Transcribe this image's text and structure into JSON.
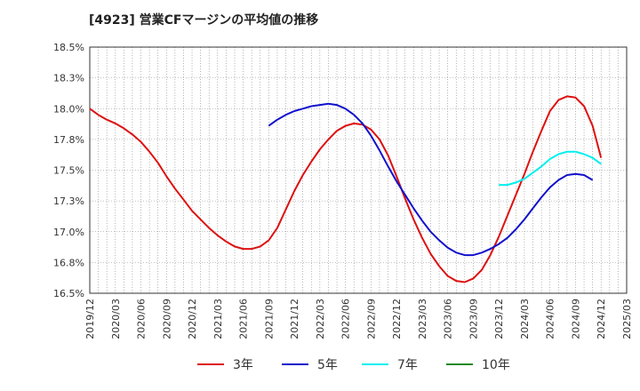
{
  "chart_data": {
    "type": "line",
    "title": "[4923]  営業CFマージンの平均値の推移",
    "xlabel": "",
    "ylabel": "",
    "grid": true,
    "legend_placement": "bottom",
    "x_ticks": [
      "2019/12",
      "2020/03",
      "2020/06",
      "2020/09",
      "2020/12",
      "2021/03",
      "2021/06",
      "2021/09",
      "2021/12",
      "2022/03",
      "2022/06",
      "2022/09",
      "2022/12",
      "2023/03",
      "2023/06",
      "2023/09",
      "2023/12",
      "2024/03",
      "2024/06",
      "2024/09",
      "2024/12",
      "2025/03"
    ],
    "y_ticks": [
      "16.5%",
      "16.8%",
      "17.0%",
      "17.3%",
      "17.5%",
      "17.8%",
      "18.0%",
      "18.3%",
      "18.5%"
    ],
    "ylim": [
      16.5,
      18.5
    ],
    "series": [
      {
        "name": "3年",
        "color": "#dd1111",
        "points": [
          [
            "2019/12",
            18.0
          ],
          [
            "2020/01",
            17.95
          ],
          [
            "2020/02",
            17.91
          ],
          [
            "2020/03",
            17.88
          ],
          [
            "2020/04",
            17.84
          ],
          [
            "2020/05",
            17.79
          ],
          [
            "2020/06",
            17.73
          ],
          [
            "2020/07",
            17.65
          ],
          [
            "2020/08",
            17.56
          ],
          [
            "2020/09",
            17.45
          ],
          [
            "2020/10",
            17.35
          ],
          [
            "2020/11",
            17.26
          ],
          [
            "2020/12",
            17.17
          ],
          [
            "2020/01b",
            17.17
          ],
          [
            "2021/01",
            17.1
          ],
          [
            "2021/02",
            17.03
          ],
          [
            "2021/03",
            16.97
          ],
          [
            "2021/04",
            16.92
          ],
          [
            "2021/05",
            16.88
          ],
          [
            "2021/06",
            16.86
          ],
          [
            "2021/07",
            16.86
          ],
          [
            "2021/08",
            16.88
          ],
          [
            "2021/09",
            16.93
          ],
          [
            "2021/10",
            17.03
          ],
          [
            "2021/11",
            17.18
          ],
          [
            "2021/12",
            17.33
          ],
          [
            "2022/01",
            17.46
          ],
          [
            "2022/02",
            17.57
          ],
          [
            "2022/03",
            17.67
          ],
          [
            "2022/04",
            17.75
          ],
          [
            "2022/05",
            17.82
          ],
          [
            "2022/06",
            17.86
          ],
          [
            "2022/07",
            17.88
          ],
          [
            "2022/08",
            17.87
          ],
          [
            "2022/09",
            17.83
          ],
          [
            "2022/10",
            17.75
          ],
          [
            "2022/11",
            17.62
          ],
          [
            "2022/12",
            17.45
          ],
          [
            "2023/01",
            17.27
          ],
          [
            "2023/02",
            17.1
          ],
          [
            "2023/03",
            16.95
          ],
          [
            "2023/04",
            16.82
          ],
          [
            "2023/05",
            16.72
          ],
          [
            "2023/06",
            16.64
          ],
          [
            "2023/07",
            16.6
          ],
          [
            "2023/08",
            16.59
          ],
          [
            "2023/09",
            16.62
          ],
          [
            "2023/10",
            16.69
          ],
          [
            "2023/11",
            16.81
          ],
          [
            "2023/12",
            16.96
          ],
          [
            "2024/01",
            17.13
          ],
          [
            "2024/02",
            17.3
          ],
          [
            "2024/03",
            17.47
          ],
          [
            "2024/04",
            17.65
          ],
          [
            "2024/05",
            17.82
          ],
          [
            "2024/06",
            17.98
          ],
          [
            "2024/07",
            18.07
          ],
          [
            "2024/08",
            18.1
          ],
          [
            "2024/09",
            18.09
          ],
          [
            "2024/10",
            18.02
          ],
          [
            "2024/11",
            17.86
          ],
          [
            "2024/12",
            17.6
          ]
        ]
      },
      {
        "name": "5年",
        "color": "#1111cc",
        "points": [
          [
            "2021/09",
            17.86
          ],
          [
            "2021/10",
            17.91
          ],
          [
            "2021/11",
            17.95
          ],
          [
            "2021/12",
            17.98
          ],
          [
            "2022/01",
            18.0
          ],
          [
            "2022/02",
            18.02
          ],
          [
            "2022/03",
            18.03
          ],
          [
            "2022/04",
            18.04
          ],
          [
            "2022/05",
            18.03
          ],
          [
            "2022/06",
            18.0
          ],
          [
            "2022/07",
            17.95
          ],
          [
            "2022/08",
            17.88
          ],
          [
            "2022/09",
            17.78
          ],
          [
            "2022/10",
            17.66
          ],
          [
            "2022/11",
            17.53
          ],
          [
            "2022/12",
            17.41
          ],
          [
            "2023/01",
            17.3
          ],
          [
            "2023/02",
            17.19
          ],
          [
            "2023/03",
            17.09
          ],
          [
            "2023/04",
            17.0
          ],
          [
            "2023/05",
            16.93
          ],
          [
            "2023/06",
            16.87
          ],
          [
            "2023/07",
            16.83
          ],
          [
            "2023/08",
            16.81
          ],
          [
            "2023/09",
            16.81
          ],
          [
            "2023/10",
            16.83
          ],
          [
            "2023/11",
            16.86
          ],
          [
            "2023/12",
            16.9
          ],
          [
            "2024/01",
            16.95
          ],
          [
            "2024/02",
            17.02
          ],
          [
            "2024/03",
            17.1
          ],
          [
            "2024/04",
            17.19
          ],
          [
            "2024/05",
            17.28
          ],
          [
            "2024/06",
            17.36
          ],
          [
            "2024/07",
            17.42
          ],
          [
            "2024/08",
            17.46
          ],
          [
            "2024/09",
            17.47
          ],
          [
            "2024/10",
            17.46
          ],
          [
            "2024/11",
            17.42
          ]
        ]
      },
      {
        "name": "7年",
        "color": "#00eeee",
        "points": [
          [
            "2023/12",
            17.38
          ],
          [
            "2024/01",
            17.38
          ],
          [
            "2024/02",
            17.4
          ],
          [
            "2024/03",
            17.43
          ],
          [
            "2024/04",
            17.48
          ],
          [
            "2024/05",
            17.53
          ],
          [
            "2024/06",
            17.59
          ],
          [
            "2024/07",
            17.63
          ],
          [
            "2024/08",
            17.65
          ],
          [
            "2024/09",
            17.65
          ],
          [
            "2024/10",
            17.63
          ],
          [
            "2024/11",
            17.6
          ],
          [
            "2024/12",
            17.55
          ]
        ]
      },
      {
        "name": "10年",
        "color": "#228822",
        "points": []
      }
    ]
  }
}
